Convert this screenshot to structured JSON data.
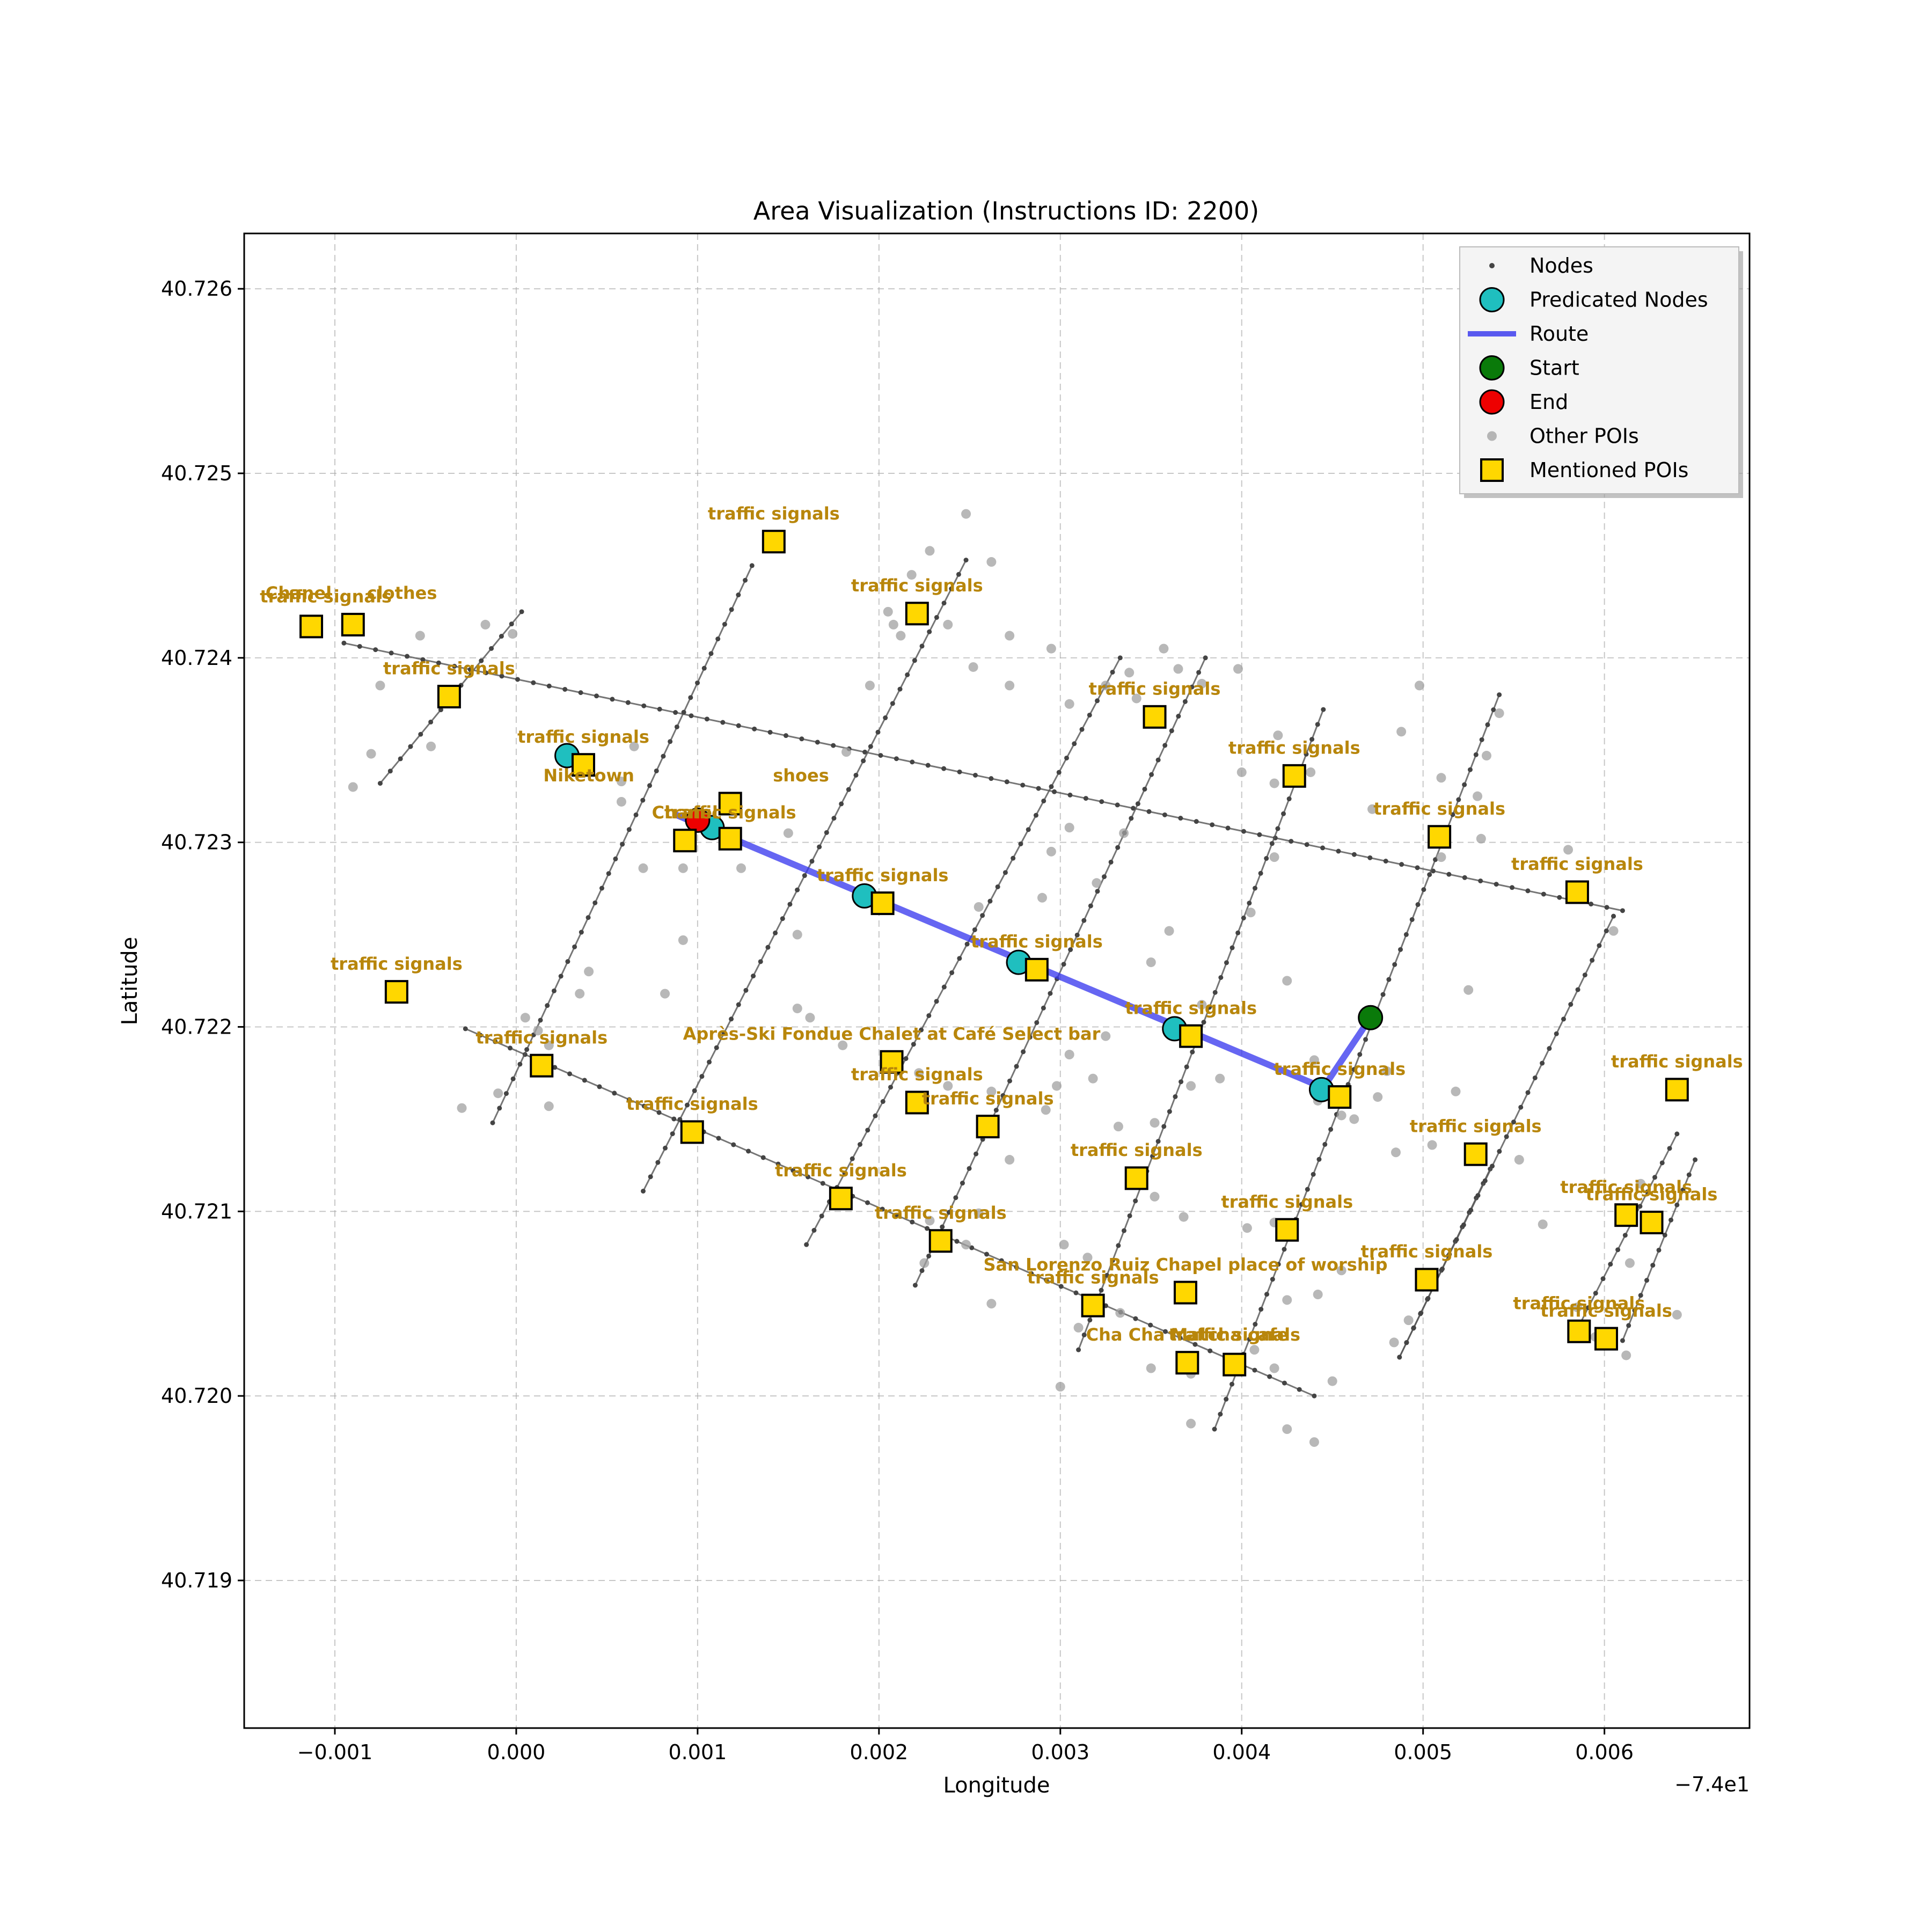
{
  "chart_data": {
    "type": "scatter",
    "title": "Area Visualization (Instructions ID: 2200)",
    "xlabel": "Longitude",
    "ylabel": "Latitude",
    "x_offset_label": "−7.4e1",
    "xlim": [
      -0.0015,
      0.0068
    ],
    "ylim": [
      40.7182,
      40.7263
    ],
    "xticks": [
      -0.001,
      0.0,
      0.001,
      0.002,
      0.003,
      0.004,
      0.005,
      0.006
    ],
    "xtick_labels": [
      "−0.001",
      "0.000",
      "0.001",
      "0.002",
      "0.003",
      "0.004",
      "0.005",
      "0.006"
    ],
    "yticks": [
      40.719,
      40.72,
      40.721,
      40.722,
      40.723,
      40.724,
      40.725,
      40.726
    ],
    "ytick_labels": [
      "40.719",
      "40.720",
      "40.721",
      "40.722",
      "40.723",
      "40.724",
      "40.725",
      "40.726"
    ],
    "grid": true,
    "legend_position": "top-right",
    "legend": [
      {
        "key": "nodes",
        "label": "Nodes"
      },
      {
        "key": "pred",
        "label": "Predicated Nodes"
      },
      {
        "key": "route",
        "label": "Route"
      },
      {
        "key": "start",
        "label": "Start"
      },
      {
        "key": "end",
        "label": "End"
      },
      {
        "key": "other",
        "label": "Other POIs"
      },
      {
        "key": "mentioned",
        "label": "Mentioned POIs"
      }
    ],
    "colors": {
      "nodes": "#444444",
      "pred": "#1fbfbf",
      "route": "#3333ee",
      "start": "#0a7a0a",
      "end": "#ee0000",
      "other": "#a0a0a0",
      "mentioned": "#ffd700",
      "label": "#b8860b"
    },
    "streets": [
      [
        [
          -0.00095,
          40.72408
        ],
        [
          0.0061,
          40.72263
        ]
      ],
      [
        [
          -0.00028,
          40.72199
        ],
        [
          0.0044,
          40.72
        ]
      ],
      [
        [
          -0.00075,
          40.72332
        ],
        [
          3e-05,
          40.72425
        ]
      ],
      [
        [
          -0.00013,
          40.72148
        ],
        [
          0.0013,
          40.7245
        ]
      ],
      [
        [
          0.0007,
          40.72111
        ],
        [
          0.00248,
          40.72453
        ]
      ],
      [
        [
          0.0016,
          40.72082
        ],
        [
          0.00333,
          40.724
        ]
      ],
      [
        [
          0.0022,
          40.7206
        ],
        [
          0.0038,
          40.724
        ]
      ],
      [
        [
          0.0031,
          40.72025
        ],
        [
          0.00445,
          40.72372
        ]
      ],
      [
        [
          0.00385,
          40.71982
        ],
        [
          0.00542,
          40.7238
        ]
      ],
      [
        [
          0.00487,
          40.72021
        ],
        [
          0.00537,
          40.72123
        ]
      ],
      [
        [
          0.00587,
          40.7204
        ],
        [
          0.0064,
          40.72142
        ]
      ],
      [
        [
          0.0061,
          40.7203
        ],
        [
          0.0065,
          40.72128
        ]
      ],
      [
        [
          0.00487,
          40.72021
        ],
        [
          0.00605,
          40.7226
        ]
      ]
    ],
    "route": [
      [
        0.00471,
        40.72205
      ],
      [
        0.00445,
        40.72167
      ],
      [
        0.00088,
        40.72315
      ]
    ],
    "start": [
      0.00471,
      40.72205
    ],
    "end": [
      0.001,
      40.72312
    ],
    "predicted_nodes": [
      [
        0.00028,
        40.72347
      ],
      [
        0.00108,
        40.72308
      ],
      [
        0.00192,
        40.72271
      ],
      [
        0.00277,
        40.72235
      ],
      [
        0.00363,
        40.72199
      ],
      [
        0.00444,
        40.72166
      ]
    ],
    "other_pois": [
      [
        -0.0009,
        40.7233
      ],
      [
        -0.00075,
        40.72385
      ],
      [
        -0.0008,
        40.72348
      ],
      [
        -0.00053,
        40.72412
      ],
      [
        -0.00047,
        40.72352
      ],
      [
        -0.00017,
        40.72418
      ],
      [
        -2e-05,
        40.72413
      ],
      [
        5e-05,
        40.72205
      ],
      [
        0.00012,
        40.72198
      ],
      [
        0.00018,
        40.7219
      ],
      [
        -0.0001,
        40.72164
      ],
      [
        -0.0003,
        40.72156
      ],
      [
        0.00018,
        40.72157
      ],
      [
        0.00035,
        40.72218
      ],
      [
        0.0004,
        40.7223
      ],
      [
        0.00058,
        40.72333
      ],
      [
        0.00065,
        40.72352
      ],
      [
        0.00058,
        40.72322
      ],
      [
        0.0007,
        40.72286
      ],
      [
        0.00082,
        40.72218
      ],
      [
        0.00092,
        40.72286
      ],
      [
        0.00092,
        40.72247
      ],
      [
        0.00124,
        40.72286
      ],
      [
        0.0015,
        40.72305
      ],
      [
        0.00155,
        40.7225
      ],
      [
        0.00182,
        40.72349
      ],
      [
        0.00195,
        40.72385
      ],
      [
        0.00205,
        40.72425
      ],
      [
        0.00218,
        40.72445
      ],
      [
        0.00228,
        40.72458
      ],
      [
        0.00248,
        40.72478
      ],
      [
        0.00262,
        40.72452
      ],
      [
        0.00208,
        40.72418
      ],
      [
        0.00212,
        40.72412
      ],
      [
        0.00238,
        40.72418
      ],
      [
        0.00252,
        40.72395
      ],
      [
        0.00272,
        40.72412
      ],
      [
        0.00272,
        40.72385
      ],
      [
        0.00295,
        40.72405
      ],
      [
        0.00305,
        40.72375
      ],
      [
        0.00325,
        40.72385
      ],
      [
        0.00338,
        40.72392
      ],
      [
        0.00342,
        40.72378
      ],
      [
        0.00357,
        40.72405
      ],
      [
        0.00365,
        40.72394
      ],
      [
        0.00378,
        40.72386
      ],
      [
        0.00398,
        40.72394
      ],
      [
        0.0042,
        40.72358
      ],
      [
        0.004,
        40.72338
      ],
      [
        0.00418,
        40.72332
      ],
      [
        0.00438,
        40.72338
      ],
      [
        0.00472,
        40.72318
      ],
      [
        0.00488,
        40.7236
      ],
      [
        0.00498,
        40.72385
      ],
      [
        0.0051,
        40.72335
      ],
      [
        0.0053,
        40.72325
      ],
      [
        0.00542,
        40.7237
      ],
      [
        0.00535,
        40.72347
      ],
      [
        0.00532,
        40.72302
      ],
      [
        0.0051,
        40.72292
      ],
      [
        0.0058,
        40.72296
      ],
      [
        0.00605,
        40.72252
      ],
      [
        0.00525,
        40.7222
      ],
      [
        0.00255,
        40.72265
      ],
      [
        0.0029,
        40.7227
      ],
      [
        0.00295,
        40.72295
      ],
      [
        0.00305,
        40.72308
      ],
      [
        0.0032,
        40.72278
      ],
      [
        0.00335,
        40.72305
      ],
      [
        0.0035,
        40.72235
      ],
      [
        0.0036,
        40.72252
      ],
      [
        0.00378,
        40.72212
      ],
      [
        0.00405,
        40.72262
      ],
      [
        0.00418,
        40.72292
      ],
      [
        0.00425,
        40.72225
      ],
      [
        0.0044,
        40.72182
      ],
      [
        0.00442,
        40.7216
      ],
      [
        0.00455,
        40.72152
      ],
      [
        0.00475,
        40.72162
      ],
      [
        0.0048,
        40.72176
      ],
      [
        0.00505,
        40.72136
      ],
      [
        0.00518,
        40.72165
      ],
      [
        0.00553,
        40.72128
      ],
      [
        0.00566,
        40.72093
      ],
      [
        0.00585,
        40.72048
      ],
      [
        0.00595,
        40.72032
      ],
      [
        0.00612,
        40.72022
      ],
      [
        0.0064,
        40.72044
      ],
      [
        0.00614,
        40.72072
      ],
      [
        0.0062,
        40.72115
      ],
      [
        0.00332,
        40.72146
      ],
      [
        0.00352,
        40.72108
      ],
      [
        0.00368,
        40.72097
      ],
      [
        0.00403,
        40.72091
      ],
      [
        0.00418,
        40.72094
      ],
      [
        0.00425,
        40.72052
      ],
      [
        0.00442,
        40.72055
      ],
      [
        0.00455,
        40.72068
      ],
      [
        0.00484,
        40.72029
      ],
      [
        0.00492,
        40.72041
      ],
      [
        0.00302,
        40.72082
      ],
      [
        0.00315,
        40.72075
      ],
      [
        0.00333,
        40.72045
      ],
      [
        0.0035,
        40.72015
      ],
      [
        0.00372,
        40.72012
      ],
      [
        0.00407,
        40.72025
      ],
      [
        0.00418,
        40.72015
      ],
      [
        0.00425,
        40.71982
      ],
      [
        0.0044,
        40.71975
      ],
      [
        0.0045,
        40.72008
      ],
      [
        0.003,
        40.72005
      ],
      [
        0.00255,
        40.72099
      ],
      [
        0.00248,
        40.72082
      ],
      [
        0.00225,
        40.72072
      ],
      [
        0.00228,
        40.72095
      ],
      [
        0.00238,
        40.72168
      ],
      [
        0.00262,
        40.72165
      ],
      [
        0.00272,
        40.72128
      ],
      [
        0.00292,
        40.72155
      ],
      [
        0.00298,
        40.72168
      ],
      [
        0.00305,
        40.72185
      ],
      [
        0.00325,
        40.72195
      ],
      [
        0.00318,
        40.72172
      ],
      [
        0.00372,
        40.72168
      ],
      [
        0.00388,
        40.72172
      ],
      [
        0.00222,
        40.72175
      ],
      [
        0.0018,
        40.7219
      ],
      [
        0.00162,
        40.72205
      ],
      [
        0.00155,
        40.7221
      ],
      [
        0.00352,
        40.72148
      ],
      [
        0.00372,
        40.71985
      ],
      [
        0.0031,
        40.72037
      ],
      [
        0.00262,
        40.7205
      ],
      [
        0.00462,
        40.7215
      ],
      [
        0.00485,
        40.72132
      ]
    ],
    "mentioned_pois": [
      {
        "x": -0.00113,
        "y": 40.72417,
        "label": "traffic signals",
        "lx": -0.00105,
        "ly": 40.7243
      },
      {
        "x": -0.0009,
        "y": 40.72418,
        "label": "traffic signals",
        "lx": -0.0021,
        "ly": 40.72406,
        "hidden_label": true
      },
      {
        "x": -0.0009,
        "y": 40.72418,
        "label": "Chanel",
        "lx": -0.0012,
        "ly": 40.72432
      },
      {
        "x": -0.0009,
        "y": 40.72418,
        "label": "clothes",
        "lx": -0.00063,
        "ly": 40.72432
      },
      {
        "x": -0.00037,
        "y": 40.72379,
        "label": "traffic signals",
        "lx": -0.00037,
        "ly": 40.72391
      },
      {
        "x": 0.00037,
        "y": 40.72342,
        "label": "traffic signals",
        "lx": 0.00037,
        "ly": 40.72354
      },
      {
        "x": 0.00142,
        "y": 40.72463,
        "label": "traffic signals",
        "lx": 0.00142,
        "ly": 40.72475
      },
      {
        "x": 0.00221,
        "y": 40.72424,
        "label": "traffic signals",
        "lx": 0.00221,
        "ly": 40.72436
      },
      {
        "x": 0.00352,
        "y": 40.72368,
        "label": "traffic signals",
        "lx": 0.00352,
        "ly": 40.7238
      },
      {
        "x": 0.00429,
        "y": 40.72336,
        "label": "traffic signals",
        "lx": 0.00429,
        "ly": 40.72348
      },
      {
        "x": 0.00509,
        "y": 40.72303,
        "label": "traffic signals",
        "lx": 0.00509,
        "ly": 40.72315
      },
      {
        "x": 0.00585,
        "y": 40.72273,
        "label": "traffic signals",
        "lx": 0.00585,
        "ly": 40.72285
      },
      {
        "x": 0.00118,
        "y": 40.72321,
        "label": "Niketown",
        "lx": 0.0004,
        "ly": 40.72333,
        "no_center": true
      },
      {
        "x": 0.00118,
        "y": 40.72321,
        "label": "shoes",
        "lx": 0.00157,
        "ly": 40.72333
      },
      {
        "x": 0.00093,
        "y": 40.72301,
        "label": "Chanel",
        "lx": 0.00093,
        "ly": 40.72313
      },
      {
        "x": 0.00118,
        "y": 40.72302,
        "label": "traffic signals",
        "lx": 0.00118,
        "ly": 40.72313
      },
      {
        "x": 0.00202,
        "y": 40.72267,
        "label": "traffic signals",
        "lx": 0.00202,
        "ly": 40.72279
      },
      {
        "x": 0.00287,
        "y": 40.72231,
        "label": "traffic signals",
        "lx": 0.00287,
        "ly": 40.72243
      },
      {
        "x": 0.00372,
        "y": 40.72195,
        "label": "traffic signals",
        "lx": 0.00372,
        "ly": 40.72207
      },
      {
        "x": 0.00454,
        "y": 40.72162,
        "label": "traffic signals",
        "lx": 0.00454,
        "ly": 40.72174
      },
      {
        "x": -0.00066,
        "y": 40.72219,
        "label": "traffic signals",
        "lx": -0.00066,
        "ly": 40.72231
      },
      {
        "x": 0.00014,
        "y": 40.72179,
        "label": "traffic signals",
        "lx": 0.00014,
        "ly": 40.72191
      },
      {
        "x": 0.00097,
        "y": 40.72143,
        "label": "traffic signals",
        "lx": 0.00097,
        "ly": 40.72155
      },
      {
        "x": 0.00179,
        "y": 40.72107,
        "label": "traffic signals",
        "lx": 0.00179,
        "ly": 40.72119
      },
      {
        "x": 0.00207,
        "y": 40.72181,
        "label": "Après-Ski Fondue Chalet at Café Select bar",
        "lx": 0.00207,
        "ly": 40.72193
      },
      {
        "x": 0.00221,
        "y": 40.72159,
        "label": "traffic signals",
        "lx": 0.00221,
        "ly": 40.72171
      },
      {
        "x": 0.0026,
        "y": 40.72146,
        "label": "traffic signals",
        "lx": 0.0026,
        "ly": 40.72158
      },
      {
        "x": 0.00234,
        "y": 40.72084,
        "label": "traffic signals",
        "lx": 0.00234,
        "ly": 40.72096
      },
      {
        "x": 0.00342,
        "y": 40.72118,
        "label": "traffic signals",
        "lx": 0.00342,
        "ly": 40.7213
      },
      {
        "x": 0.00425,
        "y": 40.7209,
        "label": "traffic signals",
        "lx": 0.00425,
        "ly": 40.72102
      },
      {
        "x": 0.00529,
        "y": 40.72131,
        "label": "traffic signals",
        "lx": 0.00529,
        "ly": 40.72143
      },
      {
        "x": 0.0064,
        "y": 40.72166,
        "label": "traffic signals",
        "lx": 0.0064,
        "ly": 40.72178
      },
      {
        "x": 0.00369,
        "y": 40.72056,
        "label": "San Lorenzo Ruiz Chapel place of worship",
        "lx": 0.00369,
        "ly": 40.72068
      },
      {
        "x": 0.00318,
        "y": 40.72049,
        "label": "traffic signals",
        "lx": 0.00318,
        "ly": 40.72061
      },
      {
        "x": 0.00502,
        "y": 40.72063,
        "label": "traffic signals",
        "lx": 0.00502,
        "ly": 40.72075
      },
      {
        "x": 0.00612,
        "y": 40.72098,
        "label": "traffic signals",
        "lx": 0.00612,
        "ly": 40.7211
      },
      {
        "x": 0.00626,
        "y": 40.72094,
        "label": "traffic signals",
        "lx": 0.00626,
        "ly": 40.72106
      },
      {
        "x": 0.00586,
        "y": 40.72035,
        "label": "traffic signals",
        "lx": 0.00586,
        "ly": 40.72047
      },
      {
        "x": 0.00601,
        "y": 40.72031,
        "label": "traffic signals",
        "lx": 0.00601,
        "ly": 40.72043
      },
      {
        "x": 0.0037,
        "y": 40.72018,
        "label": "Cha Cha Matcha cafe",
        "lx": 0.0037,
        "ly": 40.7203
      },
      {
        "x": 0.00396,
        "y": 40.72017,
        "label": "traffic signals",
        "lx": 0.00396,
        "ly": 40.7203
      }
    ]
  }
}
